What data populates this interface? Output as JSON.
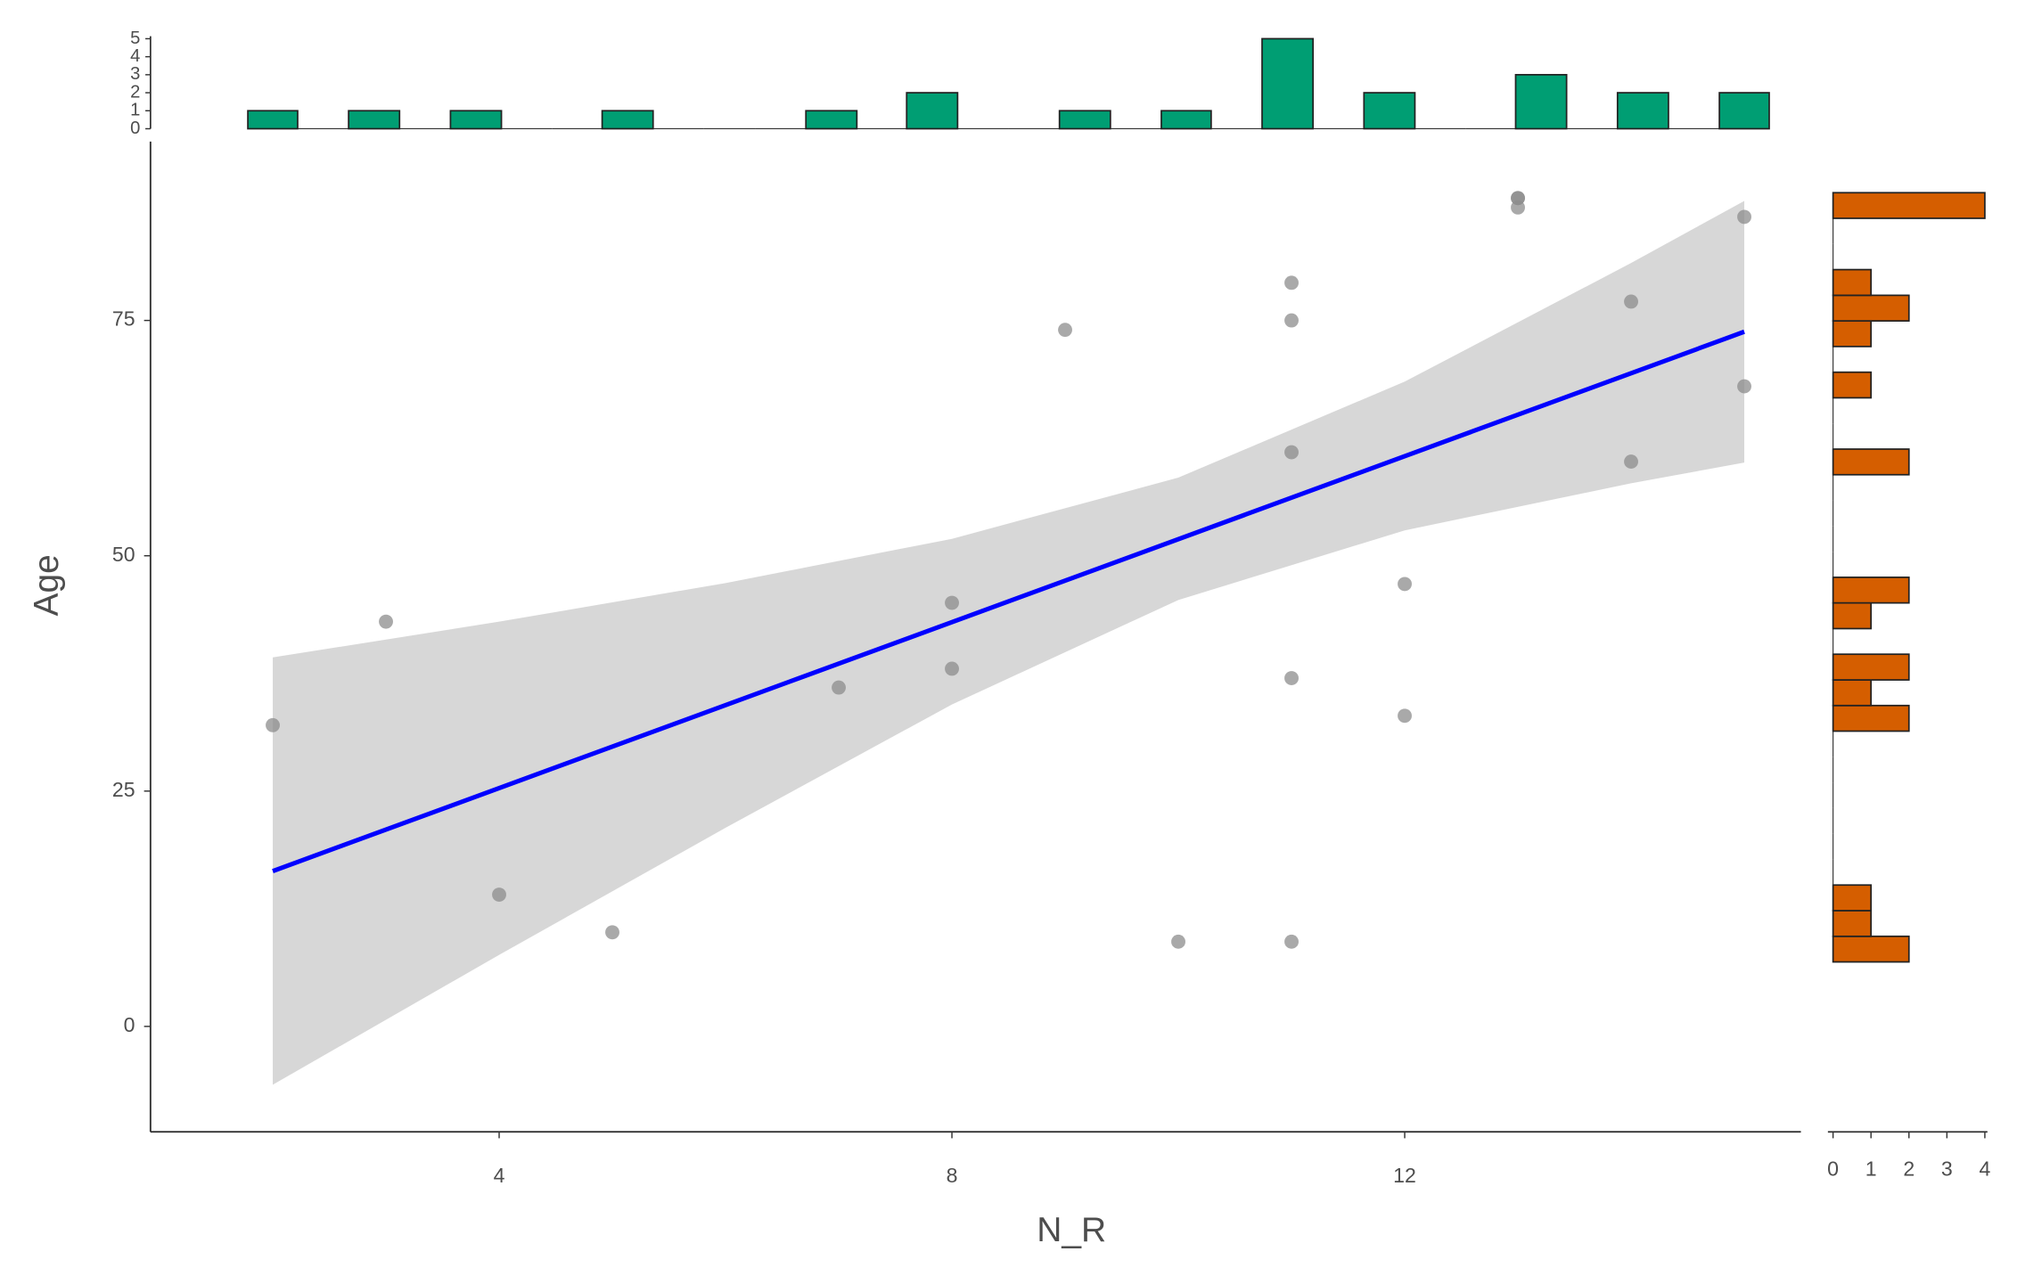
{
  "chart_data": {
    "type": "scatter",
    "x_label": "N_R",
    "y_label": "Age",
    "x": [
      2,
      3,
      4,
      5,
      7,
      8,
      8,
      9,
      10,
      11,
      11,
      11,
      11,
      11,
      12,
      12,
      13,
      13,
      13,
      14,
      14,
      15,
      15
    ],
    "y": [
      32,
      43,
      14,
      10,
      36,
      45,
      38,
      74,
      9,
      79,
      75,
      61,
      37,
      9,
      47,
      33,
      88,
      88,
      87,
      77,
      60,
      86,
      68
    ],
    "point_color": "#8c8c8c",
    "xlim": [
      0.92,
      15.5
    ],
    "ylim": [
      -11.2,
      94
    ],
    "xticks": [
      4,
      8,
      12
    ],
    "yticks": [
      0,
      25,
      50,
      75
    ],
    "fit": {
      "color": "#0000ff",
      "x": [
        2,
        15
      ],
      "y": [
        16.5,
        73.8
      ]
    },
    "band": {
      "color": "#d3d3d3",
      "x": [
        2,
        4,
        6,
        8,
        10,
        12,
        14,
        15
      ],
      "lower": [
        -6.2,
        7.6,
        21.1,
        34.2,
        45.3,
        52.7,
        57.7,
        59.9
      ],
      "upper": [
        39.2,
        43.0,
        47.1,
        51.8,
        58.3,
        68.5,
        81.1,
        87.7
      ]
    },
    "x_histogram": {
      "color": "#009e73",
      "bins": [
        1.78,
        2.22,
        2.67,
        3.12,
        3.57,
        4.02,
        4.47,
        4.91,
        5.36,
        5.81,
        6.26,
        6.71,
        7.16,
        7.6,
        8.05,
        8.5,
        8.95,
        9.4,
        9.85,
        10.29,
        10.74,
        11.19,
        11.64,
        12.09,
        12.54,
        12.98,
        13.43,
        13.88,
        14.33,
        14.78,
        15.22
      ],
      "counts": [
        1,
        0,
        1,
        0,
        1,
        0,
        0,
        1,
        0,
        0,
        0,
        1,
        0,
        2,
        0,
        0,
        1,
        0,
        1,
        0,
        5,
        0,
        2,
        0,
        0,
        3,
        0,
        2,
        0,
        2
      ],
      "ylim": [
        0,
        5
      ],
      "yticks": [
        0,
        1,
        2,
        3,
        4,
        5
      ]
    },
    "y_histogram": {
      "color": "#d55e00",
      "bins": [
        6.85,
        9.57,
        12.3,
        15.02,
        17.75,
        20.47,
        23.19,
        25.92,
        28.64,
        31.37,
        34.09,
        36.81,
        39.54,
        42.26,
        44.99,
        47.71,
        50.43,
        53.16,
        55.88,
        58.61,
        61.33,
        64.05,
        66.78,
        69.5,
        72.23,
        74.95,
        77.67,
        80.4,
        83.12,
        85.85,
        88.57
      ],
      "counts": [
        2,
        1,
        1,
        0,
        0,
        0,
        0,
        0,
        0,
        2,
        1,
        2,
        0,
        1,
        2,
        0,
        0,
        0,
        0,
        2,
        0,
        0,
        1,
        0,
        1,
        2,
        1,
        0,
        0,
        4
      ],
      "xlim": [
        0,
        4
      ],
      "xticks": [
        0,
        1,
        2,
        3,
        4
      ]
    }
  }
}
